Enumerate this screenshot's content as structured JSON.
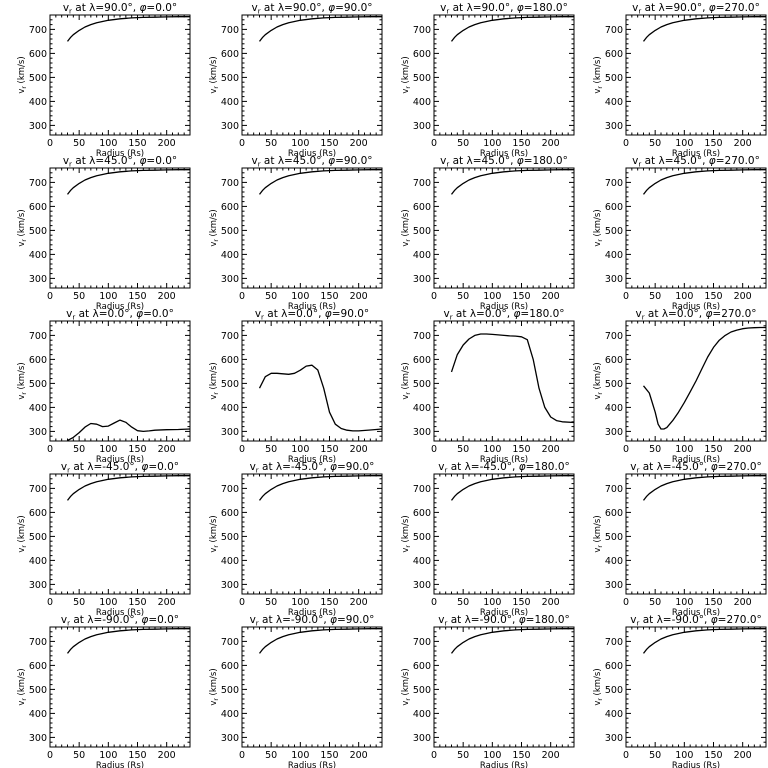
{
  "chart_data": {
    "type": "line",
    "layout": "5x4 grid of small multiples",
    "xlabel": "Radius (Rs)",
    "ylabel": "v_r (km/s)",
    "xlim": [
      0,
      240
    ],
    "ylim": [
      260,
      760
    ],
    "xticks": [
      0,
      50,
      100,
      150,
      200
    ],
    "yticks": [
      300,
      400,
      500,
      600,
      700
    ],
    "line_color": "#000000",
    "panels": [
      {
        "title": "vr at λ=90.0°, φ=0.0°",
        "lambda": "90.0",
        "phi": "0.0",
        "x": [
          30,
          35,
          40,
          50,
          60,
          70,
          80,
          100,
          120,
          140,
          160,
          180,
          200,
          220,
          240
        ],
        "y": [
          650,
          666,
          678,
          696,
          710,
          720,
          728,
          738,
          744,
          748,
          750,
          751,
          752,
          753,
          753
        ]
      },
      {
        "title": "vr at λ=90.0°, φ=90.0°",
        "lambda": "90.0",
        "phi": "90.0",
        "x": [
          30,
          35,
          40,
          50,
          60,
          70,
          80,
          100,
          120,
          140,
          160,
          180,
          200,
          220,
          240
        ],
        "y": [
          650,
          666,
          678,
          696,
          710,
          720,
          728,
          738,
          744,
          748,
          750,
          751,
          752,
          753,
          753
        ]
      },
      {
        "title": "vr at λ=90.0°, φ=180.0°",
        "lambda": "90.0",
        "phi": "180.0",
        "x": [
          30,
          35,
          40,
          50,
          60,
          70,
          80,
          100,
          120,
          140,
          160,
          180,
          200,
          220,
          240
        ],
        "y": [
          650,
          666,
          678,
          696,
          710,
          720,
          728,
          738,
          744,
          748,
          750,
          751,
          752,
          753,
          753
        ]
      },
      {
        "title": "vr at λ=90.0°, φ=270.0°",
        "lambda": "90.0",
        "phi": "270.0",
        "x": [
          30,
          35,
          40,
          50,
          60,
          70,
          80,
          100,
          120,
          140,
          160,
          180,
          200,
          220,
          240
        ],
        "y": [
          650,
          666,
          678,
          696,
          710,
          720,
          728,
          738,
          744,
          748,
          750,
          751,
          752,
          753,
          753
        ]
      },
      {
        "title": "vr at λ=45.0°, φ=0.0°",
        "lambda": "45.0",
        "phi": "0.0",
        "x": [
          30,
          35,
          40,
          50,
          60,
          70,
          80,
          100,
          120,
          140,
          160,
          180,
          200,
          220,
          240
        ],
        "y": [
          650,
          666,
          678,
          696,
          710,
          720,
          728,
          738,
          744,
          748,
          750,
          751,
          752,
          753,
          753
        ]
      },
      {
        "title": "vr at λ=45.0°, φ=90.0°",
        "lambda": "45.0",
        "phi": "90.0",
        "x": [
          30,
          35,
          40,
          50,
          60,
          70,
          80,
          100,
          120,
          140,
          160,
          180,
          200,
          220,
          240
        ],
        "y": [
          650,
          666,
          678,
          696,
          710,
          720,
          728,
          738,
          744,
          748,
          750,
          751,
          752,
          753,
          753
        ]
      },
      {
        "title": "vr at λ=45.0°, φ=180.0°",
        "lambda": "45.0",
        "phi": "180.0",
        "x": [
          30,
          35,
          40,
          50,
          60,
          70,
          80,
          100,
          120,
          140,
          160,
          180,
          200,
          220,
          240
        ],
        "y": [
          650,
          666,
          678,
          696,
          710,
          720,
          728,
          738,
          744,
          748,
          750,
          751,
          752,
          753,
          753
        ]
      },
      {
        "title": "vr at λ=45.0°, φ=270.0°",
        "lambda": "45.0",
        "phi": "270.0",
        "x": [
          30,
          35,
          40,
          50,
          60,
          70,
          80,
          100,
          120,
          140,
          160,
          180,
          200,
          220,
          240
        ],
        "y": [
          650,
          666,
          678,
          696,
          710,
          720,
          728,
          738,
          744,
          748,
          750,
          751,
          752,
          753,
          753
        ]
      },
      {
        "title": "vr at λ=0.0°, φ=0.0°",
        "lambda": "0.0",
        "phi": "0.0",
        "x": [
          30,
          40,
          50,
          60,
          70,
          80,
          90,
          100,
          110,
          120,
          130,
          140,
          150,
          160,
          170,
          180,
          200,
          220,
          240
        ],
        "y": [
          262,
          275,
          295,
          318,
          333,
          330,
          320,
          322,
          335,
          347,
          338,
          318,
          303,
          300,
          302,
          305,
          307,
          308,
          310
        ]
      },
      {
        "title": "vr at λ=0.0°, φ=90.0°",
        "lambda": "0.0",
        "phi": "90.0",
        "x": [
          30,
          40,
          50,
          60,
          70,
          80,
          90,
          100,
          110,
          120,
          130,
          140,
          150,
          160,
          170,
          180,
          190,
          200,
          220,
          240
        ],
        "y": [
          480,
          528,
          542,
          542,
          540,
          538,
          542,
          555,
          572,
          576,
          556,
          480,
          380,
          330,
          312,
          305,
          302,
          302,
          306,
          310
        ]
      },
      {
        "title": "vr at λ=0.0°, φ=180.0°",
        "lambda": "0.0",
        "phi": "180.0",
        "x": [
          30,
          40,
          50,
          60,
          70,
          80,
          90,
          100,
          110,
          120,
          130,
          140,
          150,
          160,
          170,
          180,
          190,
          200,
          210,
          220,
          240
        ],
        "y": [
          548,
          620,
          660,
          685,
          700,
          706,
          706,
          704,
          702,
          700,
          698,
          697,
          694,
          682,
          600,
          480,
          400,
          360,
          345,
          340,
          337
        ]
      },
      {
        "title": "vr at λ=0.0°, φ=270.0°",
        "lambda": "0.0",
        "phi": "270.0",
        "x": [
          30,
          40,
          50,
          55,
          60,
          65,
          70,
          80,
          90,
          100,
          110,
          120,
          130,
          140,
          150,
          160,
          170,
          180,
          190,
          200,
          210,
          220,
          230,
          240
        ],
        "y": [
          490,
          460,
          380,
          330,
          310,
          310,
          316,
          345,
          380,
          420,
          465,
          510,
          560,
          610,
          650,
          680,
          700,
          714,
          722,
          728,
          731,
          732,
          733,
          733
        ]
      },
      {
        "title": "vr at λ=-45.0°, φ=0.0°",
        "lambda": "-45.0",
        "phi": "0.0",
        "x": [
          30,
          35,
          40,
          50,
          60,
          70,
          80,
          100,
          120,
          140,
          160,
          180,
          200,
          220,
          240
        ],
        "y": [
          650,
          666,
          678,
          696,
          710,
          720,
          728,
          738,
          744,
          748,
          750,
          751,
          752,
          753,
          753
        ]
      },
      {
        "title": "vr at λ=-45.0°, φ=90.0°",
        "lambda": "-45.0",
        "phi": "90.0",
        "x": [
          30,
          35,
          40,
          50,
          60,
          70,
          80,
          100,
          120,
          140,
          160,
          180,
          200,
          220,
          240
        ],
        "y": [
          650,
          666,
          678,
          696,
          710,
          720,
          728,
          738,
          744,
          748,
          750,
          751,
          752,
          753,
          753
        ]
      },
      {
        "title": "vr at λ=-45.0°, φ=180.0°",
        "lambda": "-45.0",
        "phi": "180.0",
        "x": [
          30,
          35,
          40,
          50,
          60,
          70,
          80,
          100,
          120,
          140,
          160,
          180,
          200,
          220,
          240
        ],
        "y": [
          650,
          666,
          678,
          696,
          710,
          720,
          728,
          738,
          744,
          748,
          750,
          751,
          752,
          753,
          753
        ]
      },
      {
        "title": "vr at λ=-45.0°, φ=270.0°",
        "lambda": "-45.0",
        "phi": "270.0",
        "x": [
          30,
          35,
          40,
          50,
          60,
          70,
          80,
          100,
          120,
          140,
          160,
          180,
          200,
          220,
          240
        ],
        "y": [
          650,
          666,
          678,
          696,
          710,
          720,
          728,
          738,
          744,
          748,
          750,
          751,
          752,
          753,
          753
        ]
      },
      {
        "title": "vr at λ=-90.0°, φ=0.0°",
        "lambda": "-90.0",
        "phi": "0.0",
        "x": [
          30,
          35,
          40,
          50,
          60,
          70,
          80,
          100,
          120,
          140,
          160,
          180,
          200,
          220,
          240
        ],
        "y": [
          650,
          666,
          678,
          696,
          710,
          720,
          728,
          738,
          744,
          748,
          750,
          751,
          752,
          753,
          753
        ]
      },
      {
        "title": "vr at λ=-90.0°, φ=90.0°",
        "lambda": "-90.0",
        "phi": "90.0",
        "x": [
          30,
          35,
          40,
          50,
          60,
          70,
          80,
          100,
          120,
          140,
          160,
          180,
          200,
          220,
          240
        ],
        "y": [
          650,
          666,
          678,
          696,
          710,
          720,
          728,
          738,
          744,
          748,
          750,
          751,
          752,
          753,
          753
        ]
      },
      {
        "title": "vr at λ=-90.0°, φ=180.0°",
        "lambda": "-90.0",
        "phi": "180.0",
        "x": [
          30,
          35,
          40,
          50,
          60,
          70,
          80,
          100,
          120,
          140,
          160,
          180,
          200,
          220,
          240
        ],
        "y": [
          650,
          666,
          678,
          696,
          710,
          720,
          728,
          738,
          744,
          748,
          750,
          751,
          752,
          753,
          753
        ]
      },
      {
        "title": "vr at λ=-90.0°, φ=270.0°",
        "lambda": "-90.0",
        "phi": "270.0",
        "x": [
          30,
          35,
          40,
          50,
          60,
          70,
          80,
          100,
          120,
          140,
          160,
          180,
          200,
          220,
          240
        ],
        "y": [
          650,
          666,
          678,
          696,
          710,
          720,
          728,
          738,
          744,
          748,
          750,
          751,
          752,
          753,
          753
        ]
      }
    ]
  }
}
